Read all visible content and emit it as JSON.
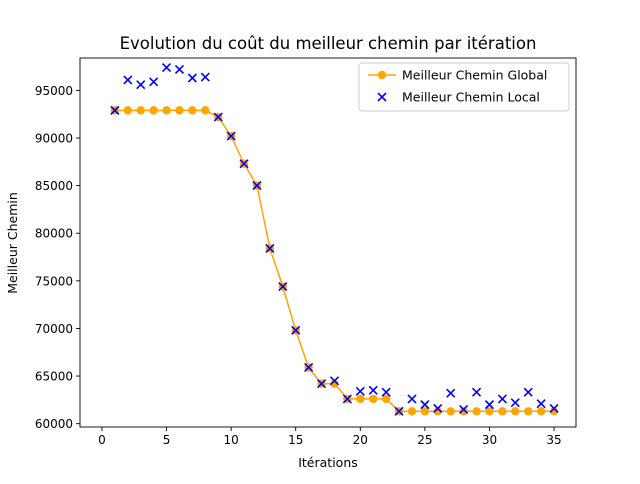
{
  "chart_data": {
    "type": "line",
    "title": "Evolution du coût du meilleur chemin par itération",
    "xlabel": "Itérations",
    "ylabel": "Meilleur Chemin",
    "xlim": [
      -1.7,
      36.7
    ],
    "ylim": [
      59650,
      98400
    ],
    "xticks": [
      0,
      5,
      10,
      15,
      20,
      25,
      30,
      35
    ],
    "yticks": [
      60000,
      65000,
      70000,
      75000,
      80000,
      85000,
      90000,
      95000
    ],
    "grid": false,
    "legend_position": "top-right",
    "x": [
      1,
      2,
      3,
      4,
      5,
      6,
      7,
      8,
      9,
      10,
      11,
      12,
      13,
      14,
      15,
      16,
      17,
      18,
      19,
      20,
      21,
      22,
      23,
      24,
      25,
      26,
      27,
      28,
      29,
      30,
      31,
      32,
      33,
      34,
      35
    ],
    "series": [
      {
        "name": "Meilleur Chemin Global",
        "kind": "line-marker",
        "color": "#ffa500",
        "values": [
          92900,
          92900,
          92900,
          92900,
          92900,
          92900,
          92900,
          92900,
          92200,
          90200,
          87300,
          85000,
          78400,
          74400,
          69800,
          65900,
          64200,
          64200,
          62600,
          62600,
          62600,
          62600,
          61300,
          61300,
          61300,
          61300,
          61300,
          61300,
          61300,
          61300,
          61300,
          61300,
          61300,
          61300,
          61300
        ]
      },
      {
        "name": "Meilleur Chemin Local",
        "kind": "scatter-x",
        "color": "#0000ff",
        "values": [
          92900,
          96100,
          95600,
          95900,
          97400,
          97200,
          96300,
          96400,
          92200,
          90200,
          87300,
          85000,
          78400,
          74400,
          69800,
          65900,
          64200,
          64500,
          62600,
          63400,
          63500,
          63300,
          61300,
          62600,
          62000,
          61600,
          63200,
          61500,
          63300,
          62000,
          62600,
          62200,
          63300,
          62100,
          61600
        ]
      }
    ]
  }
}
